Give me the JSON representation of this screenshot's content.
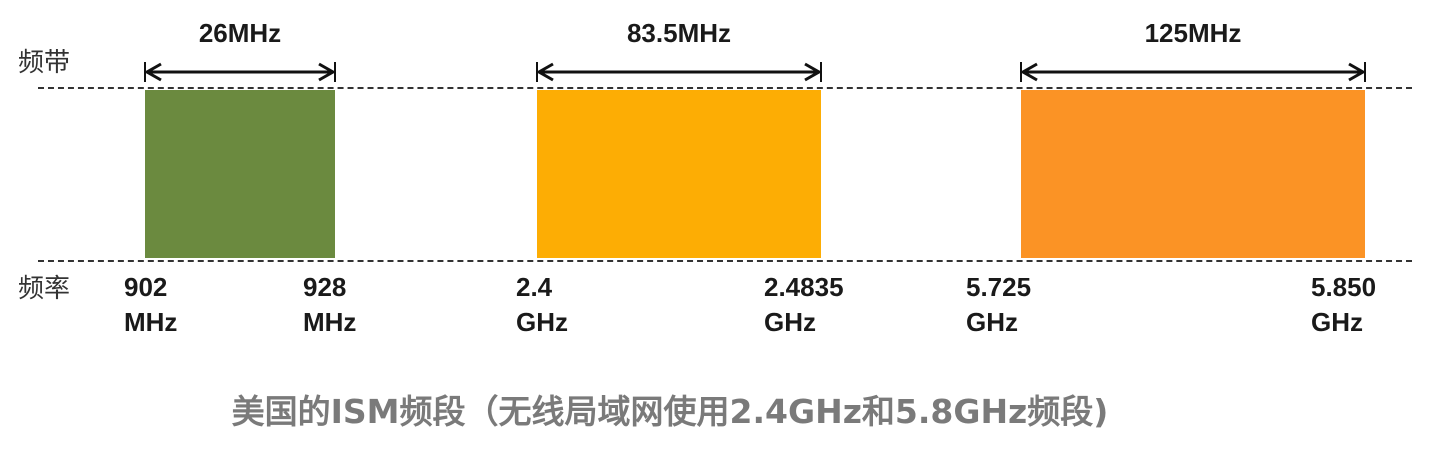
{
  "row_labels": {
    "band": "频带",
    "frequency": "频率"
  },
  "bands": [
    {
      "bandwidth": "26MHz",
      "color": "#6b8a3f",
      "start": {
        "value": "902",
        "unit": "MHz"
      },
      "end": {
        "value": "928",
        "unit": "MHz"
      }
    },
    {
      "bandwidth": "83.5MHz",
      "color": "#fdad04",
      "start": {
        "value": "2.4",
        "unit": "GHz"
      },
      "end": {
        "value": "2.4835",
        "unit": "GHz"
      }
    },
    {
      "bandwidth": "125MHz",
      "color": "#fb9325",
      "start": {
        "value": "5.725",
        "unit": "GHz"
      },
      "end": {
        "value": "5.850",
        "unit": "GHz"
      }
    }
  ],
  "caption": "美国的ISM频段（无线局域网使用2.4GHz和5.8GHz频段)"
}
